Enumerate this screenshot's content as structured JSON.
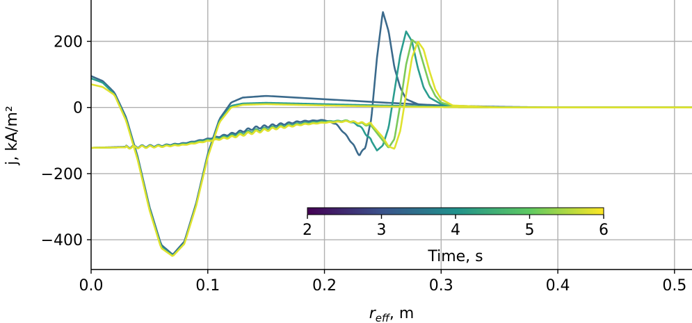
{
  "chart_data": {
    "type": "line",
    "xlabel_main": "r",
    "xlabel_sub": "eff",
    "xlabel_unit": ", m",
    "ylabel": "j, kA/m²",
    "xlim": [
      0.0,
      0.515
    ],
    "ylim": [
      -490,
      325
    ],
    "xticks": [
      0.0,
      0.1,
      0.2,
      0.3,
      0.4,
      0.5
    ],
    "xtick_labels": [
      "0.0",
      "0.1",
      "0.2",
      "0.3",
      "0.4",
      "0.5"
    ],
    "yticks": [
      -400,
      -200,
      0,
      200
    ],
    "ytick_labels": [
      "−400",
      "−200",
      "0",
      "200"
    ],
    "grid": true,
    "colorbar": {
      "label": "Time, s",
      "min": 2,
      "max": 6,
      "ticks": [
        2,
        3,
        4,
        5,
        6
      ],
      "tick_labels": [
        "2",
        "3",
        "4",
        "5",
        "6"
      ],
      "colors": [
        "#440154",
        "#3b528b",
        "#21918c",
        "#5ec962",
        "#fde725"
      ]
    },
    "series": [
      {
        "time": 3,
        "color": "#3b6a8c",
        "family": "j_total",
        "x": [
          0.0,
          0.01,
          0.02,
          0.03,
          0.04,
          0.05,
          0.06,
          0.07,
          0.08,
          0.09,
          0.1,
          0.11,
          0.12,
          0.13,
          0.15,
          0.2,
          0.25,
          0.3,
          0.35,
          0.4,
          0.45,
          0.5,
          0.515
        ],
        "y": [
          95,
          80,
          45,
          -30,
          -150,
          -300,
          -415,
          -445,
          -405,
          -290,
          -140,
          -35,
          15,
          30,
          35,
          25,
          15,
          6,
          2,
          0,
          0,
          0,
          0
        ]
      },
      {
        "time": 4,
        "color": "#2a9d8f",
        "family": "j_total",
        "x": [
          0.0,
          0.01,
          0.02,
          0.03,
          0.04,
          0.05,
          0.06,
          0.07,
          0.08,
          0.09,
          0.1,
          0.11,
          0.12,
          0.13,
          0.15,
          0.2,
          0.25,
          0.3,
          0.35,
          0.4,
          0.45,
          0.5,
          0.515
        ],
        "y": [
          88,
          75,
          40,
          -35,
          -155,
          -305,
          -420,
          -448,
          -410,
          -295,
          -145,
          -40,
          5,
          12,
          14,
          10,
          6,
          3,
          1,
          0,
          0,
          0,
          0
        ]
      },
      {
        "time": 6,
        "color": "#dfe22f",
        "family": "j_total",
        "x": [
          0.0,
          0.01,
          0.02,
          0.03,
          0.04,
          0.05,
          0.06,
          0.07,
          0.08,
          0.09,
          0.1,
          0.11,
          0.12,
          0.13,
          0.15,
          0.2,
          0.25,
          0.3,
          0.35,
          0.4,
          0.45,
          0.5,
          0.515
        ],
        "y": [
          70,
          62,
          38,
          -40,
          -160,
          -310,
          -425,
          -450,
          -412,
          -298,
          -150,
          -45,
          0,
          8,
          10,
          6,
          3,
          1,
          0,
          0,
          0,
          0,
          0
        ]
      },
      {
        "time": 3,
        "color": "#3b6a8c",
        "family": "j_bootstrap",
        "x": [
          0.0,
          0.02,
          0.04,
          0.06,
          0.08,
          0.1,
          0.12,
          0.14,
          0.16,
          0.18,
          0.2,
          0.21,
          0.22,
          0.225,
          0.23,
          0.235,
          0.24,
          0.245,
          0.25,
          0.255,
          0.26,
          0.265,
          0.27,
          0.28,
          0.29,
          0.3,
          0.35,
          0.4,
          0.45,
          0.5,
          0.515
        ],
        "y": [
          -122,
          -120,
          -118,
          -115,
          -108,
          -95,
          -80,
          -62,
          -52,
          -42,
          -38,
          -50,
          -90,
          -115,
          -145,
          -120,
          -40,
          150,
          290,
          230,
          120,
          60,
          25,
          10,
          4,
          1,
          0,
          0,
          0,
          0,
          0
        ]
      },
      {
        "time": 4,
        "color": "#2a9d8f",
        "family": "j_bootstrap",
        "x": [
          0.0,
          0.02,
          0.04,
          0.06,
          0.08,
          0.1,
          0.12,
          0.14,
          0.16,
          0.18,
          0.2,
          0.22,
          0.23,
          0.24,
          0.245,
          0.25,
          0.255,
          0.26,
          0.265,
          0.27,
          0.275,
          0.28,
          0.285,
          0.29,
          0.3,
          0.31,
          0.35,
          0.4,
          0.45,
          0.5,
          0.515
        ],
        "y": [
          -122,
          -121,
          -119,
          -116,
          -110,
          -98,
          -85,
          -70,
          -58,
          -48,
          -42,
          -40,
          -55,
          -100,
          -130,
          -115,
          -60,
          50,
          160,
          230,
          200,
          120,
          60,
          30,
          10,
          3,
          0,
          0,
          0,
          0,
          0
        ]
      },
      {
        "time": 5,
        "color": "#7bc95a",
        "family": "j_bootstrap",
        "x": [
          0.0,
          0.02,
          0.04,
          0.06,
          0.08,
          0.1,
          0.12,
          0.14,
          0.16,
          0.18,
          0.2,
          0.22,
          0.24,
          0.25,
          0.255,
          0.26,
          0.265,
          0.27,
          0.275,
          0.28,
          0.285,
          0.29,
          0.295,
          0.3,
          0.31,
          0.35,
          0.4,
          0.45,
          0.5,
          0.515
        ],
        "y": [
          -122,
          -121,
          -120,
          -117,
          -112,
          -100,
          -88,
          -72,
          -60,
          -50,
          -44,
          -40,
          -55,
          -100,
          -122,
          -95,
          10,
          130,
          205,
          190,
          130,
          70,
          35,
          15,
          4,
          0,
          0,
          0,
          0,
          0
        ]
      },
      {
        "time": 6,
        "color": "#dfe22f",
        "family": "j_bootstrap",
        "x": [
          0.0,
          0.02,
          0.04,
          0.06,
          0.08,
          0.1,
          0.12,
          0.14,
          0.16,
          0.18,
          0.2,
          0.22,
          0.24,
          0.25,
          0.255,
          0.26,
          0.265,
          0.27,
          0.275,
          0.28,
          0.285,
          0.29,
          0.295,
          0.3,
          0.31,
          0.35,
          0.4,
          0.45,
          0.5,
          0.515
        ],
        "y": [
          -122,
          -121,
          -120,
          -118,
          -113,
          -102,
          -90,
          -75,
          -62,
          -52,
          -46,
          -42,
          -50,
          -90,
          -118,
          -125,
          -70,
          40,
          150,
          200,
          175,
          110,
          55,
          25,
          6,
          0,
          0,
          0,
          0,
          0
        ]
      }
    ]
  }
}
